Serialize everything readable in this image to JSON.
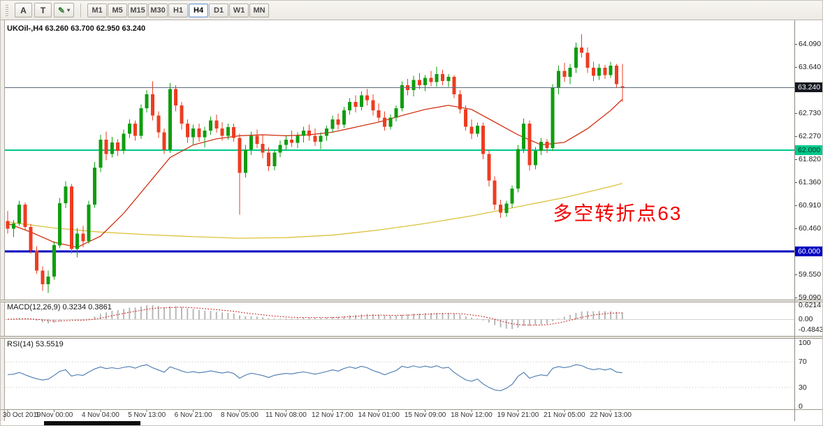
{
  "toolbar": {
    "tools": [
      {
        "name": "cursor-tool",
        "label": "A"
      },
      {
        "name": "text-tool",
        "label": "T"
      },
      {
        "name": "draw-tool",
        "label": "✎",
        "color": "#2e7d32",
        "has_dropdown": true
      }
    ],
    "timeframes": [
      "M1",
      "M5",
      "M15",
      "M30",
      "H1",
      "H4",
      "D1",
      "W1",
      "MN"
    ],
    "active_timeframe": "H4",
    "dropdown_caret": "▾"
  },
  "chart_data": {
    "type": "candlestick",
    "symbol": "UKOil-",
    "timeframe": "H4",
    "title": "UKOil-,H4 63.260 63.700 62.950 63.240",
    "last_ohlc": {
      "open": 63.26,
      "high": 63.7,
      "low": 62.95,
      "close": 63.24
    },
    "ylim": [
      59.02,
      64.46
    ],
    "colors": {
      "up": "#0f9d0f",
      "down": "#ee3c20",
      "ma_red": "#cc2200",
      "ma_yellow": "#dcc23c"
    },
    "candles": [
      [
        60.6,
        60.8,
        60.35,
        60.45
      ],
      [
        60.45,
        60.62,
        60.28,
        60.55
      ],
      [
        60.55,
        61.0,
        60.5,
        60.92
      ],
      [
        60.92,
        60.96,
        60.42,
        60.48
      ],
      [
        60.48,
        60.54,
        59.96,
        60.02
      ],
      [
        60.02,
        60.1,
        59.56,
        59.62
      ],
      [
        59.62,
        59.7,
        59.22,
        59.35
      ],
      [
        59.35,
        59.62,
        59.18,
        59.5
      ],
      [
        59.5,
        60.2,
        59.44,
        60.12
      ],
      [
        60.12,
        61.05,
        60.06,
        60.95
      ],
      [
        60.95,
        61.38,
        60.85,
        61.28
      ],
      [
        61.28,
        61.33,
        59.96,
        60.05
      ],
      [
        60.05,
        60.46,
        59.88,
        60.35
      ],
      [
        60.35,
        60.5,
        60.08,
        60.2
      ],
      [
        60.2,
        61.0,
        60.15,
        60.92
      ],
      [
        60.92,
        61.76,
        60.86,
        61.65
      ],
      [
        61.65,
        62.3,
        61.56,
        62.2
      ],
      [
        62.2,
        62.36,
        61.8,
        61.92
      ],
      [
        61.92,
        62.26,
        61.85,
        62.15
      ],
      [
        62.15,
        62.21,
        61.88,
        61.98
      ],
      [
        61.98,
        62.4,
        61.92,
        62.32
      ],
      [
        62.32,
        62.6,
        62.24,
        62.52
      ],
      [
        62.52,
        62.58,
        62.18,
        62.28
      ],
      [
        62.28,
        62.9,
        62.22,
        62.82
      ],
      [
        62.82,
        63.18,
        62.74,
        63.1
      ],
      [
        63.1,
        63.35,
        62.58,
        62.68
      ],
      [
        62.68,
        62.76,
        62.24,
        62.35
      ],
      [
        62.35,
        62.42,
        61.92,
        62.0
      ],
      [
        62.0,
        63.32,
        61.94,
        63.2
      ],
      [
        63.2,
        63.28,
        62.76,
        62.88
      ],
      [
        62.88,
        62.95,
        62.4,
        62.52
      ],
      [
        62.52,
        62.6,
        62.14,
        62.25
      ],
      [
        62.25,
        62.5,
        62.1,
        62.42
      ],
      [
        62.42,
        62.52,
        62.16,
        62.25
      ],
      [
        62.25,
        62.46,
        62.05,
        62.38
      ],
      [
        62.38,
        62.66,
        62.3,
        62.58
      ],
      [
        62.58,
        62.7,
        62.34,
        62.42
      ],
      [
        62.42,
        62.55,
        62.18,
        62.28
      ],
      [
        62.28,
        62.52,
        62.2,
        62.45
      ],
      [
        62.45,
        62.52,
        62.16,
        62.24
      ],
      [
        62.24,
        62.32,
        60.72,
        61.55
      ],
      [
        61.55,
        62.1,
        61.45,
        62.0
      ],
      [
        62.0,
        62.36,
        61.9,
        62.28
      ],
      [
        62.28,
        62.4,
        62.04,
        62.12
      ],
      [
        62.12,
        62.3,
        61.84,
        61.95
      ],
      [
        61.95,
        62.05,
        61.58,
        61.68
      ],
      [
        61.68,
        62.0,
        61.6,
        61.95
      ],
      [
        61.95,
        62.18,
        61.86,
        62.1
      ],
      [
        62.1,
        62.28,
        62.0,
        62.2
      ],
      [
        62.2,
        62.38,
        62.06,
        62.14
      ],
      [
        62.14,
        62.35,
        62.04,
        62.28
      ],
      [
        62.28,
        62.46,
        62.15,
        62.38
      ],
      [
        62.38,
        62.5,
        62.18,
        62.28
      ],
      [
        62.28,
        62.42,
        62.08,
        62.16
      ],
      [
        62.16,
        62.35,
        62.02,
        62.28
      ],
      [
        62.28,
        62.48,
        62.18,
        62.42
      ],
      [
        62.42,
        62.68,
        62.34,
        62.6
      ],
      [
        62.6,
        62.72,
        62.4,
        62.5
      ],
      [
        62.5,
        62.85,
        62.44,
        62.78
      ],
      [
        62.78,
        63.02,
        62.7,
        62.95
      ],
      [
        62.95,
        63.08,
        62.74,
        62.85
      ],
      [
        62.85,
        63.15,
        62.78,
        63.08
      ],
      [
        63.08,
        63.2,
        62.88,
        62.98
      ],
      [
        62.98,
        63.1,
        62.68,
        62.78
      ],
      [
        62.78,
        62.92,
        62.54,
        62.64
      ],
      [
        62.64,
        62.76,
        62.38,
        62.46
      ],
      [
        62.46,
        62.7,
        62.4,
        62.64
      ],
      [
        62.64,
        62.88,
        62.56,
        62.82
      ],
      [
        62.82,
        63.35,
        62.76,
        63.28
      ],
      [
        63.28,
        63.4,
        63.08,
        63.18
      ],
      [
        63.18,
        63.46,
        63.06,
        63.38
      ],
      [
        63.38,
        63.52,
        63.2,
        63.28
      ],
      [
        63.28,
        63.48,
        63.16,
        63.42
      ],
      [
        63.42,
        63.56,
        63.26,
        63.34
      ],
      [
        63.34,
        63.64,
        63.24,
        63.5
      ],
      [
        63.5,
        63.58,
        63.28,
        63.36
      ],
      [
        63.36,
        63.5,
        63.24,
        63.44
      ],
      [
        63.44,
        63.48,
        63.02,
        63.1
      ],
      [
        63.1,
        63.18,
        62.72,
        62.8
      ],
      [
        62.8,
        62.88,
        62.38,
        62.46
      ],
      [
        62.46,
        62.6,
        62.22,
        62.32
      ],
      [
        62.32,
        62.54,
        62.26,
        62.48
      ],
      [
        62.48,
        62.54,
        61.82,
        61.92
      ],
      [
        61.92,
        62.0,
        61.28,
        61.4
      ],
      [
        61.4,
        61.48,
        60.82,
        60.92
      ],
      [
        60.92,
        61.02,
        60.66,
        60.76
      ],
      [
        60.76,
        61.0,
        60.68,
        60.94
      ],
      [
        60.94,
        61.3,
        60.86,
        61.24
      ],
      [
        61.24,
        62.1,
        61.16,
        62.02
      ],
      [
        62.02,
        62.62,
        61.94,
        62.52
      ],
      [
        62.52,
        62.58,
        61.6,
        61.7
      ],
      [
        61.7,
        62.06,
        61.62,
        61.98
      ],
      [
        61.98,
        62.24,
        61.9,
        62.16
      ],
      [
        62.16,
        62.22,
        61.94,
        62.04
      ],
      [
        62.04,
        63.3,
        61.98,
        63.22
      ],
      [
        63.22,
        63.66,
        63.1,
        63.56
      ],
      [
        63.56,
        63.72,
        63.34,
        63.44
      ],
      [
        63.44,
        63.7,
        63.3,
        63.62
      ],
      [
        63.62,
        64.12,
        63.52,
        64.02
      ],
      [
        64.02,
        64.28,
        63.82,
        63.92
      ],
      [
        63.92,
        64.02,
        63.52,
        63.62
      ],
      [
        63.62,
        63.74,
        63.36,
        63.46
      ],
      [
        63.46,
        63.7,
        63.38,
        63.62
      ],
      [
        63.62,
        63.68,
        63.4,
        63.48
      ],
      [
        63.48,
        63.74,
        63.42,
        63.66
      ],
      [
        63.66,
        63.7,
        63.22,
        63.3
      ],
      [
        63.26,
        63.7,
        62.95,
        63.24
      ]
    ],
    "overlays": {
      "ma_yellow": {
        "indices": [
          0,
          8,
          16,
          24,
          32,
          40,
          48,
          56,
          64,
          72,
          80,
          88,
          96,
          104,
          106
        ],
        "values": [
          60.58,
          60.46,
          60.38,
          60.33,
          60.29,
          60.26,
          60.27,
          60.32,
          60.42,
          60.55,
          60.7,
          60.88,
          61.06,
          61.28,
          61.34
        ]
      },
      "ma_red": {
        "indices": [
          0,
          4,
          8,
          12,
          16,
          20,
          24,
          28,
          32,
          36,
          40,
          44,
          48,
          52,
          56,
          60,
          64,
          68,
          72,
          76,
          80,
          84,
          88,
          92,
          96,
          100,
          104,
          106
        ],
        "values": [
          60.55,
          60.38,
          60.18,
          60.08,
          60.3,
          60.75,
          61.3,
          61.85,
          62.1,
          62.22,
          62.28,
          62.3,
          62.28,
          62.3,
          62.35,
          62.45,
          62.55,
          62.68,
          62.8,
          62.88,
          62.8,
          62.55,
          62.3,
          62.1,
          62.15,
          62.42,
          62.78,
          63.0
        ]
      }
    },
    "hlines": [
      {
        "name": "bid-price-line",
        "text": "63.240",
        "price": 63.24,
        "color": "#5a6b7c",
        "width": 1,
        "badge_bg": "#141821",
        "badge_fg": "#ffffff"
      },
      {
        "name": "horizontal-line-62",
        "text": "62.000",
        "price": 62.0,
        "color": "#00c98c",
        "width": 2,
        "badge_bg": "#00c98c",
        "badge_fg": "#06301f"
      },
      {
        "name": "horizontal-line-60",
        "text": "60.000",
        "price": 60.0,
        "color": "#0000c0",
        "width": 3,
        "badge_bg": "#0000c0",
        "badge_fg": "#ffffff"
      }
    ],
    "annotation": {
      "text": "多空转折点63",
      "color": "#f40000",
      "anchor_index": 94,
      "anchor_price": 60.82
    },
    "price_axis_labels": [
      {
        "text": "64.090",
        "price": 64.09
      },
      {
        "text": "63.640",
        "price": 63.64
      },
      {
        "text": "62.730",
        "price": 62.73
      },
      {
        "text": "62.270",
        "price": 62.27
      },
      {
        "text": "61.820",
        "price": 61.82
      },
      {
        "text": "61.360",
        "price": 61.36
      },
      {
        "text": "60.910",
        "price": 60.91
      },
      {
        "text": "60.460",
        "price": 60.46
      },
      {
        "text": "59.550",
        "price": 59.55
      },
      {
        "text": "59.090",
        "price": 59.09
      }
    ],
    "time_axis_labels": [
      {
        "text": "30 Oct 2019",
        "index": 0
      },
      {
        "text": "1 Nov 00:00",
        "index": 8
      },
      {
        "text": "4 Nov 04:00",
        "index": 16
      },
      {
        "text": "5 Nov 13:00",
        "index": 24
      },
      {
        "text": "6 Nov 21:00",
        "index": 32
      },
      {
        "text": "8 Nov 05:00",
        "index": 40
      },
      {
        "text": "11 Nov 08:00",
        "index": 48
      },
      {
        "text": "12 Nov 17:00",
        "index": 56
      },
      {
        "text": "14 Nov 01:00",
        "index": 64
      },
      {
        "text": "15 Nov 09:00",
        "index": 72
      },
      {
        "text": "18 Nov 12:00",
        "index": 80
      },
      {
        "text": "19 Nov 21:00",
        "index": 88
      },
      {
        "text": "21 Nov 05:00",
        "index": 96
      },
      {
        "text": "22 Nov 13:00",
        "index": 104
      }
    ],
    "indicators": {
      "macd": {
        "label": "MACD(12,26,9) 0.3234 0.3861",
        "params": {
          "fast": 12,
          "slow": 26,
          "signal": 9
        },
        "last_main": 0.3234,
        "last_signal": 0.3861,
        "axis_labels": [
          {
            "text": "0.6214",
            "value": 0.6214
          },
          {
            "text": "0.00",
            "value": 0
          },
          {
            "text": "-0.4843",
            "value": -0.4843
          }
        ],
        "colors": {
          "bar": "#b8b8b8",
          "signal": "#cc2020"
        }
      },
      "rsi": {
        "label": "RSI(14) 53.5519",
        "period": 14,
        "last": 53.5519,
        "levels": [
          70,
          30
        ],
        "axis_labels": [
          {
            "text": "100",
            "value": 100
          },
          {
            "text": "70",
            "value": 70
          },
          {
            "text": "30",
            "value": 30
          },
          {
            "text": "0",
            "value": 0
          }
        ],
        "color": "#4878b0"
      }
    }
  }
}
